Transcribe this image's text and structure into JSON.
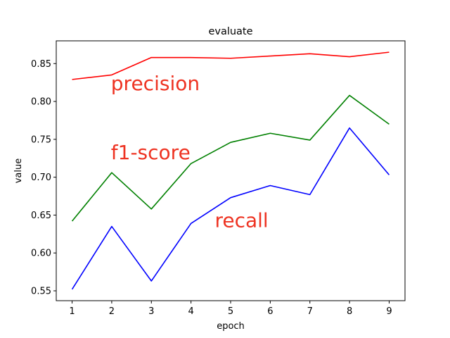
{
  "chart_data": {
    "type": "line",
    "title": "evaluate",
    "xlabel": "epoch",
    "ylabel": "value",
    "x": [
      1,
      2,
      3,
      4,
      5,
      6,
      7,
      8,
      9
    ],
    "xticks": [
      "1",
      "2",
      "3",
      "4",
      "5",
      "6",
      "7",
      "8",
      "9"
    ],
    "yticks": [
      "0.55",
      "0.60",
      "0.65",
      "0.70",
      "0.75",
      "0.80",
      "0.85"
    ],
    "ytick_values": [
      0.55,
      0.6,
      0.65,
      0.7,
      0.75,
      0.8,
      0.85
    ],
    "xlim": [
      0.6,
      9.4
    ],
    "ylim": [
      0.537,
      0.88
    ],
    "grid": false,
    "legend": "none",
    "series": [
      {
        "key": "precision",
        "color": "#ff0000",
        "values": [
          0.829,
          0.835,
          0.858,
          0.858,
          0.857,
          0.86,
          0.863,
          0.859,
          0.865
        ]
      },
      {
        "key": "f1",
        "color": "#008000",
        "values": [
          0.642,
          0.706,
          0.658,
          0.718,
          0.746,
          0.758,
          0.749,
          0.808,
          0.77
        ]
      },
      {
        "key": "recall",
        "color": "#0000ff",
        "values": [
          0.552,
          0.635,
          0.563,
          0.639,
          0.673,
          0.689,
          0.677,
          0.765,
          0.703
        ]
      }
    ],
    "annotations": [
      {
        "text": "precision",
        "color": "#ee3322",
        "x": 1.98,
        "y": 0.815
      },
      {
        "text": "f1-score",
        "color": "#ee3322",
        "x": 1.98,
        "y": 0.724
      },
      {
        "text": "recall",
        "color": "#ee3322",
        "x": 4.6,
        "y": 0.634
      }
    ]
  }
}
